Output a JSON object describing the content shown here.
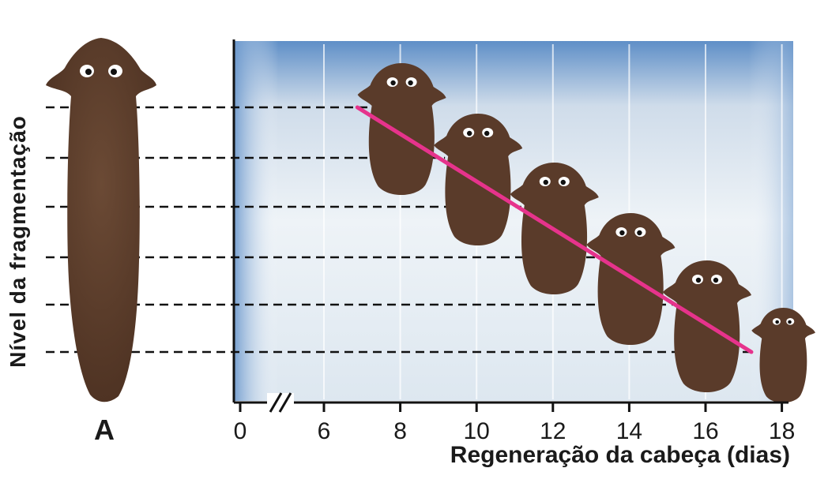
{
  "chart_data": {
    "type": "line",
    "xlabel": "Regeneração da cabeça (dias)",
    "ylabel": "Nível da fragmentação",
    "x_ticks": [
      "0",
      "6",
      "8",
      "10",
      "12",
      "14",
      "16",
      "18"
    ],
    "axis_break": true,
    "grid": "horizontal dashed reference lines",
    "series": [
      {
        "x": [
          7,
          17.2
        ],
        "levels": [
          6,
          1
        ],
        "color": "#e6338c"
      }
    ],
    "fragments": [
      {
        "regeneration_days": 8,
        "level": 6
      },
      {
        "regeneration_days": 10,
        "level": 5
      },
      {
        "regeneration_days": 12,
        "level": 4
      },
      {
        "regeneration_days": 14,
        "level": 3
      },
      {
        "regeneration_days": 16,
        "level": 2
      },
      {
        "regeneration_days": 18,
        "level": 1
      }
    ],
    "worm_label": "A"
  },
  "colors": {
    "worm": "#5a3b2a",
    "line": "#e6338c",
    "background_top": "#5f8fc7",
    "background_center": "#eef3f7"
  }
}
